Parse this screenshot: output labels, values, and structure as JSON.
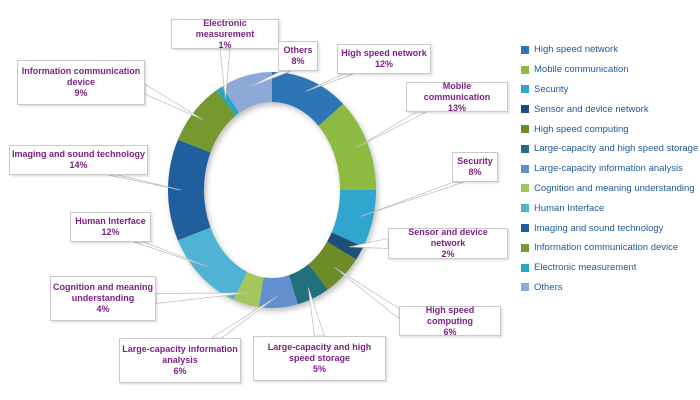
{
  "chart_data": {
    "type": "pie",
    "subtype": "donut",
    "title": "",
    "legend_position": "right",
    "start_angle_deg": 0,
    "direction": "clockwise",
    "percent_suffix": "%",
    "categories": [
      "High speed network",
      "Mobile communication",
      "Security",
      "Sensor and device network",
      "High speed computing",
      "Large-capacity and high speed storage",
      "Large-capacity information analysis",
      "Cognition and meaning understanding",
      "Human Interface",
      "Imaging and sound technology",
      "Information communication device",
      "Electronic measurement",
      "Others"
    ],
    "values": [
      12,
      13,
      8,
      2,
      6,
      5,
      6,
      4,
      12,
      14,
      9,
      1,
      8
    ],
    "data_labels": [
      "12%",
      "13%",
      "8%",
      "2%",
      "6%",
      "5%",
      "6%",
      "4%",
      "12%",
      "14%",
      "9%",
      "1%",
      "8%"
    ],
    "colors": [
      "#2E75B6",
      "#8DBA41",
      "#30A6CE",
      "#1F4E79",
      "#6D8B27",
      "#21707F",
      "#6290CF",
      "#A4C65A",
      "#4FB3D4",
      "#215E9E",
      "#75982F",
      "#2BA6BE",
      "#8CA9D8"
    ],
    "legend_entries": [
      "High speed network",
      "Mobile communication",
      "Security",
      "Sensor and device network",
      "High speed computing",
      "Large-capacity and high speed storage",
      "Large-capacity information analysis",
      "Cognition and meaning understanding",
      "Human Interface",
      "Imaging and sound technology",
      "Information communication device",
      "Electronic measurement",
      "Others"
    ],
    "style": {
      "callout_text_color": "#7b2184",
      "legend_text_color": "#215a96",
      "callout_border_color": "#c9c9c9",
      "background_color": "#ffffff"
    }
  }
}
